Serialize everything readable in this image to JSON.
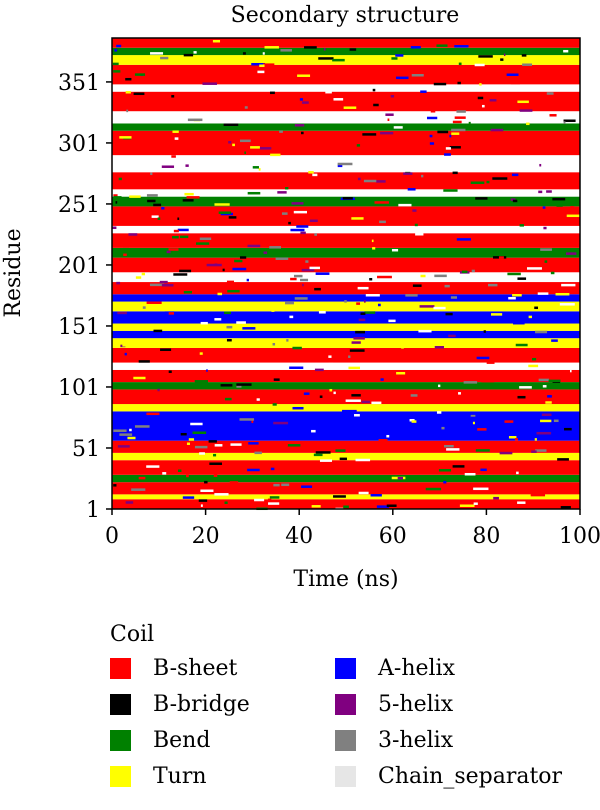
{
  "chart_data": {
    "type": "heatmap",
    "title": "Secondary structure",
    "xlabel": "Time (ns)",
    "ylabel": "Residue",
    "x_ticks": [
      0,
      20,
      40,
      60,
      80,
      100
    ],
    "y_ticks": [
      1,
      51,
      101,
      151,
      201,
      251,
      301,
      351
    ],
    "xlim": [
      0,
      100
    ],
    "ylim": [
      1,
      387
    ],
    "categories": [
      "Coil",
      "B-sheet",
      "B-bridge",
      "Bend",
      "Turn",
      "A-helix",
      "5-helix",
      "3-helix",
      "Chain_separator"
    ],
    "colors": {
      "Coil": "#ffffff",
      "B-sheet": "#ff0000",
      "B-bridge": "#000000",
      "Bend": "#008000",
      "Turn": "#ffff00",
      "A-helix": "#0000ff",
      "5-helix": "#800080",
      "3-helix": "#808080",
      "Chain_separator": "#e6e6e6"
    },
    "residue_bands": [
      {
        "from": 1,
        "to": 8,
        "structure": "B-sheet"
      },
      {
        "from": 9,
        "to": 12,
        "structure": "Turn"
      },
      {
        "from": 13,
        "to": 22,
        "structure": "B-sheet"
      },
      {
        "from": 23,
        "to": 28,
        "structure": "Bend"
      },
      {
        "from": 29,
        "to": 40,
        "structure": "B-sheet"
      },
      {
        "from": 41,
        "to": 46,
        "structure": "Turn"
      },
      {
        "from": 47,
        "to": 56,
        "structure": "B-sheet"
      },
      {
        "from": 57,
        "to": 80,
        "structure": "A-helix"
      },
      {
        "from": 81,
        "to": 86,
        "structure": "Turn"
      },
      {
        "from": 87,
        "to": 98,
        "structure": "B-sheet"
      },
      {
        "from": 99,
        "to": 104,
        "structure": "Bend"
      },
      {
        "from": 105,
        "to": 114,
        "structure": "B-sheet"
      },
      {
        "from": 115,
        "to": 120,
        "structure": "Coil"
      },
      {
        "from": 121,
        "to": 132,
        "structure": "B-sheet"
      },
      {
        "from": 133,
        "to": 140,
        "structure": "Turn"
      },
      {
        "from": 141,
        "to": 146,
        "structure": "A-helix"
      },
      {
        "from": 147,
        "to": 152,
        "structure": "Turn"
      },
      {
        "from": 153,
        "to": 162,
        "structure": "A-helix"
      },
      {
        "from": 163,
        "to": 170,
        "structure": "Turn"
      },
      {
        "from": 171,
        "to": 176,
        "structure": "A-helix"
      },
      {
        "from": 177,
        "to": 186,
        "structure": "B-sheet"
      },
      {
        "from": 187,
        "to": 194,
        "structure": "Coil"
      },
      {
        "from": 195,
        "to": 206,
        "structure": "B-sheet"
      },
      {
        "from": 207,
        "to": 214,
        "structure": "Bend"
      },
      {
        "from": 215,
        "to": 226,
        "structure": "B-sheet"
      },
      {
        "from": 227,
        "to": 232,
        "structure": "Coil"
      },
      {
        "from": 233,
        "to": 248,
        "structure": "B-sheet"
      },
      {
        "from": 249,
        "to": 256,
        "structure": "Bend"
      },
      {
        "from": 257,
        "to": 262,
        "structure": "Coil"
      },
      {
        "from": 263,
        "to": 276,
        "structure": "B-sheet"
      },
      {
        "from": 277,
        "to": 290,
        "structure": "Coil"
      },
      {
        "from": 291,
        "to": 310,
        "structure": "B-sheet"
      },
      {
        "from": 311,
        "to": 316,
        "structure": "Bend"
      },
      {
        "from": 317,
        "to": 326,
        "structure": "Coil"
      },
      {
        "from": 327,
        "to": 342,
        "structure": "B-sheet"
      },
      {
        "from": 343,
        "to": 348,
        "structure": "Coil"
      },
      {
        "from": 349,
        "to": 364,
        "structure": "B-sheet"
      },
      {
        "from": 365,
        "to": 372,
        "structure": "Turn"
      },
      {
        "from": 373,
        "to": 378,
        "structure": "Bend"
      },
      {
        "from": 379,
        "to": 387,
        "structure": "B-sheet"
      }
    ],
    "legend": {
      "title": "Coil",
      "items": [
        {
          "label": "B-sheet",
          "color": "#ff0000"
        },
        {
          "label": "A-helix",
          "color": "#0000ff"
        },
        {
          "label": "B-bridge",
          "color": "#000000"
        },
        {
          "label": "5-helix",
          "color": "#800080"
        },
        {
          "label": "Bend",
          "color": "#008000"
        },
        {
          "label": "3-helix",
          "color": "#808080"
        },
        {
          "label": "Turn",
          "color": "#ffff00"
        },
        {
          "label": "Chain_separator",
          "color": "#e6e6e6"
        }
      ]
    }
  }
}
